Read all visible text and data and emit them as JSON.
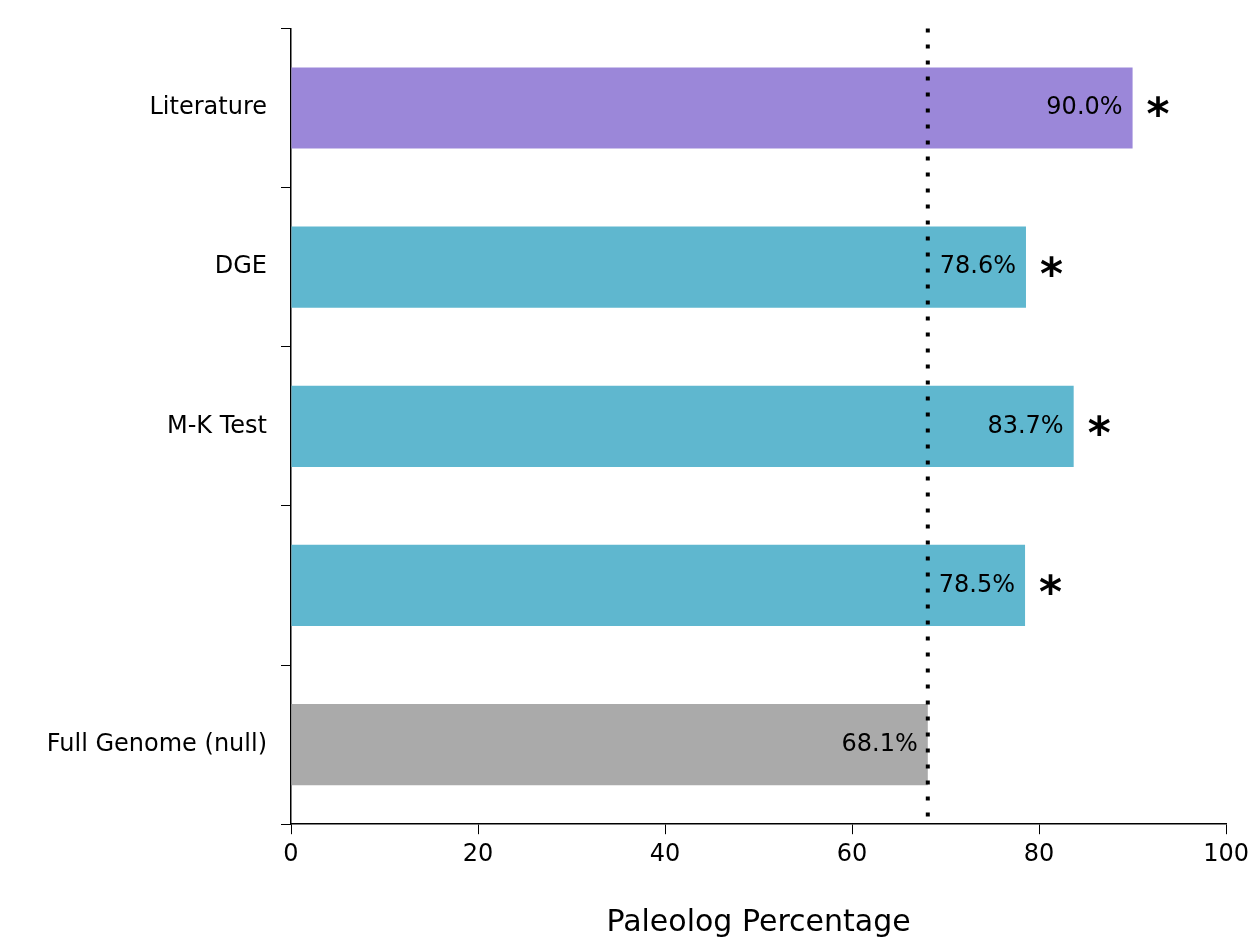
{
  "chart_data": {
    "type": "bar",
    "orientation": "horizontal",
    "xlabel": "Paleolog Percentage",
    "categories": [
      "Literature",
      "DGE",
      "M-K Test",
      null,
      "Full Genome (null)"
    ],
    "values": [
      90.0,
      78.6,
      83.7,
      78.5,
      68.1
    ],
    "colors": [
      "#9b87d9",
      "#5fb7cf",
      "#5fb7cf",
      "#5fb7cf",
      "#aaaaaa"
    ],
    "value_labels": [
      "90.0%",
      "78.6%",
      "83.7%",
      "78.5%",
      "68.1%"
    ],
    "xlim": [
      0,
      100
    ],
    "xticks": [
      0,
      20,
      40,
      60,
      80,
      100
    ],
    "grid": false,
    "legend": false,
    "ref_lines": [
      {
        "axis": "x",
        "value": 68.1,
        "line_style": "dotted",
        "color": "#000000"
      }
    ],
    "annotations": [
      {
        "text": "*",
        "x": 90.0,
        "y": "Literature"
      },
      {
        "text": "*",
        "x": 78.6,
        "y": "DGE"
      },
      {
        "text": "*",
        "x": 83.7,
        "y": "M-K Test"
      },
      {
        "text": "*",
        "x": 78.5
      }
    ]
  }
}
